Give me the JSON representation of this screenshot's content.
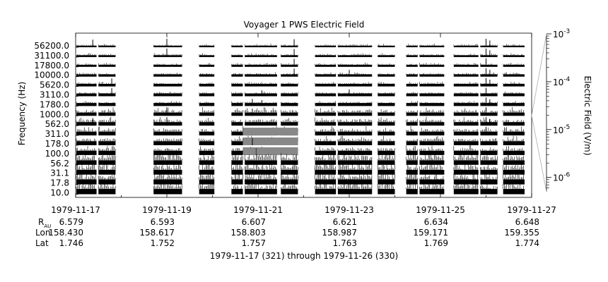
{
  "chart_data": {
    "type": "line",
    "title": "Voyager 1 PWS Electric Field",
    "ylabel": "Frequency (Hz)",
    "y2label": "Electric Field (V/m)",
    "y2_ticks": [
      {
        "base": "10",
        "exp": "-3",
        "value": 0.001
      },
      {
        "base": "10",
        "exp": "-4",
        "value": 0.0001
      },
      {
        "base": "10",
        "exp": "-5",
        "value": 1e-05
      },
      {
        "base": "10",
        "exp": "-6",
        "value": 1e-06
      }
    ],
    "y2_scale": "log",
    "channel_labels": [
      "56200.0",
      "31100.0",
      "17800.0",
      "10000.0",
      "5620.0",
      "3110.0",
      "1780.0",
      "1000.0",
      "562.0",
      "311.0",
      "178.0",
      "100.0",
      "56.2",
      "31.1",
      "17.8",
      "10.0"
    ],
    "channel_count": 16,
    "channels_hz": [
      56200,
      31100,
      17800,
      10000,
      5620,
      3110,
      1780,
      1000,
      562,
      311,
      178,
      100,
      56.2,
      31.1,
      17.8,
      10
    ],
    "x_start": "1979-11-17",
    "x_end": "1979-11-27",
    "x_tick_dates": [
      "1979-11-17",
      "1979-11-19",
      "1979-11-21",
      "1979-11-23",
      "1979-11-25",
      "1979-11-27"
    ],
    "x_minor_dates": [
      "1979-11-18",
      "1979-11-20",
      "1979-11-22",
      "1979-11-24",
      "1979-11-26"
    ],
    "data_gaps": [
      [
        "1979-11-17 11:00",
        "1979-11-17 12:00"
      ],
      [
        "1979-11-17 21:00",
        "1979-11-18 17:00"
      ],
      [
        "1979-11-19 08:00",
        "1979-11-19 17:00"
      ],
      [
        "1979-11-20 01:00",
        "1979-11-20 10:00"
      ],
      [
        "1979-11-20 16:00",
        "1979-11-20 17:00"
      ],
      [
        "1979-11-21 10:00",
        "1979-11-21 12:00"
      ],
      [
        "1979-11-21 21:00",
        "1979-11-22 06:00"
      ],
      [
        "1979-11-22 17:00",
        "1979-11-22 18:00"
      ],
      [
        "1979-11-23 12:00",
        "1979-11-23 15:00"
      ],
      [
        "1979-11-24 00:00",
        "1979-11-24 06:00"
      ],
      [
        "1979-11-24 12:00",
        "1979-11-24 13:00"
      ],
      [
        "1979-11-25 02:00",
        "1979-11-25 07:00"
      ],
      [
        "1979-11-25 20:00",
        "1979-11-25 21:00"
      ],
      [
        "1979-11-26 06:00",
        "1979-11-26 09:00"
      ]
    ],
    "gray_band": {
      "start": "1979-11-20 16:00",
      "end": "1979-11-21 21:00",
      "channels": [
        "311.0",
        "178.0",
        "100.0"
      ]
    },
    "spikes": [
      {
        "date": "1979-11-17 09:00",
        "channels": [
          0,
          8
        ],
        "level": 0.9
      },
      {
        "date": "1979-11-17 19:00",
        "channels": [
          4,
          5
        ],
        "level": 0.95
      },
      {
        "date": "1979-11-19 00:00",
        "channels": [
          0,
          1,
          7,
          8
        ],
        "level": 1.0
      },
      {
        "date": "1979-11-20 21:00",
        "channels": [
          6,
          7,
          10
        ],
        "level": 0.85
      },
      {
        "date": "1979-11-21 02:00",
        "channels": [
          5,
          6
        ],
        "level": 0.7
      },
      {
        "date": "1979-11-21 19:00",
        "channels": [
          0,
          1,
          2,
          3
        ],
        "level": 0.95
      },
      {
        "date": "1979-11-23 00:00",
        "channels": [
          3,
          5
        ],
        "level": 0.8
      },
      {
        "date": "1979-11-26 00:00",
        "channels": [
          0,
          1,
          2,
          3,
          4,
          5,
          6,
          7,
          8,
          9
        ],
        "level": 1.0
      },
      {
        "date": "1979-11-26 02:00",
        "channels": [
          0,
          1,
          3,
          4,
          6,
          8
        ],
        "level": 0.8
      }
    ],
    "ephemeris": {
      "row_labels": {
        "r": "R",
        "r_sub": "AU",
        "lon": "Lon",
        "lat": "Lat"
      },
      "values": [
        {
          "r": "6.579",
          "lon": "158.430",
          "lat": "1.746"
        },
        {
          "r": "6.593",
          "lon": "158.617",
          "lat": "1.752"
        },
        {
          "r": "6.607",
          "lon": "158.803",
          "lat": "1.757"
        },
        {
          "r": "6.621",
          "lon": "158.987",
          "lat": "1.763"
        },
        {
          "r": "6.634",
          "lon": "159.171",
          "lat": "1.769"
        },
        {
          "r": "6.648",
          "lon": "159.355",
          "lat": "1.774"
        }
      ]
    },
    "caption": "1979-11-17 (321) through 1979-11-26 (330)",
    "colors": {
      "trace": "#000000",
      "band": "#888888",
      "axis": "#000000",
      "bracket": "#aaaaaa"
    }
  }
}
